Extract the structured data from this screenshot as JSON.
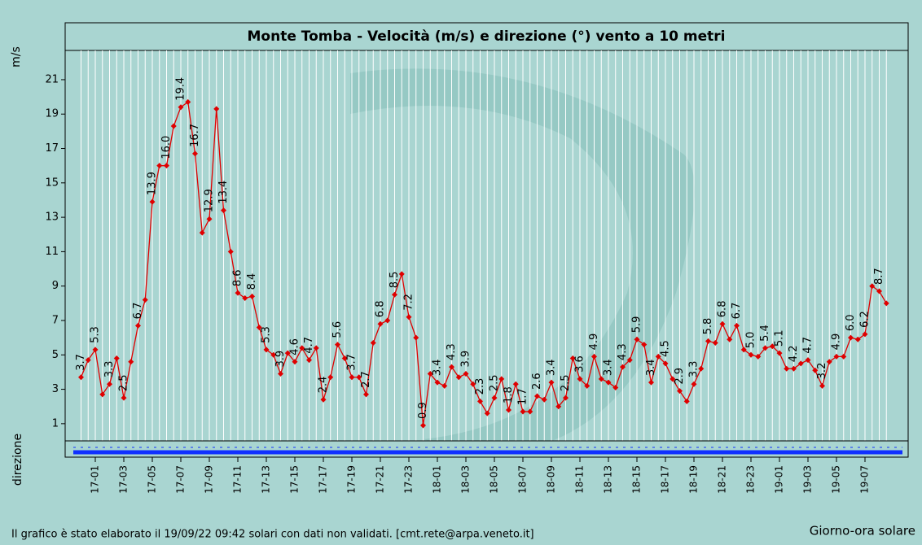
{
  "chart_data": {
    "type": "line",
    "title": "Monte Tomba - Velocità (m/s) e direzione (°) vento a 10 metri",
    "y_label": "m/s",
    "y2_label": "direzione",
    "x_label": "Giorno-ora solare",
    "footer": "Il grafico è stato elaborato il 19/09/22 09:42 solari con dati non validati. [cmt.rete@arpa.veneto.it]",
    "categories": [
      null,
      null,
      "17-01",
      null,
      null,
      null,
      "17-03",
      null,
      null,
      null,
      "17-05",
      null,
      null,
      null,
      "17-07",
      null,
      null,
      null,
      "17-09",
      null,
      null,
      null,
      "17-11",
      null,
      null,
      null,
      "17-13",
      null,
      null,
      null,
      "17-15",
      null,
      null,
      null,
      "17-17",
      null,
      null,
      null,
      "17-19",
      null,
      null,
      null,
      "17-21",
      null,
      null,
      null,
      "17-23",
      null,
      null,
      null,
      "18-01",
      null,
      null,
      null,
      "18-03",
      null,
      null,
      null,
      "18-05",
      null,
      null,
      null,
      "18-07",
      null,
      null,
      null,
      "18-09",
      null,
      null,
      null,
      "18-11",
      null,
      null,
      null,
      "18-13",
      null,
      null,
      null,
      "18-15",
      null,
      null,
      null,
      "18-17",
      null,
      null,
      null,
      "18-19",
      null,
      null,
      null,
      "18-21",
      null,
      null,
      null,
      "18-23",
      null,
      null,
      null,
      "19-01",
      null,
      null,
      null,
      "19-03",
      null,
      null,
      null,
      "19-05",
      null,
      null,
      null,
      "19-07",
      null,
      null,
      null
    ],
    "series": [
      {
        "name": "Velocità",
        "color": "#e00000",
        "values": [
          3.7,
          4.7,
          5.3,
          2.7,
          3.3,
          4.8,
          2.5,
          4.6,
          6.7,
          8.2,
          13.9,
          16.0,
          16.0,
          18.3,
          19.4,
          19.7,
          16.7,
          12.1,
          12.9,
          19.3,
          13.4,
          11.0,
          8.6,
          8.3,
          8.4,
          6.6,
          5.3,
          5.0,
          3.9,
          5.1,
          4.6,
          5.4,
          4.7,
          5.4,
          2.4,
          3.7,
          5.6,
          4.8,
          3.7,
          3.7,
          2.7,
          5.7,
          6.8,
          7.0,
          8.5,
          9.7,
          7.2,
          6.0,
          0.9,
          3.9,
          3.4,
          3.2,
          4.3,
          3.7,
          3.9,
          3.3,
          2.3,
          1.6,
          2.5,
          3.6,
          1.8,
          3.3,
          1.7,
          1.7,
          2.6,
          2.4,
          3.4,
          2.0,
          2.5,
          4.8,
          3.6,
          3.2,
          4.9,
          3.6,
          3.4,
          3.1,
          4.3,
          4.7,
          5.9,
          5.6,
          3.4,
          4.9,
          4.5,
          3.6,
          2.9,
          2.3,
          3.3,
          4.2,
          5.8,
          5.7,
          6.8,
          5.9,
          6.7,
          5.3,
          5.0,
          4.9,
          5.4,
          5.5,
          5.1,
          4.2,
          4.2,
          4.5,
          4.7,
          4.1,
          3.2,
          4.6,
          4.9,
          4.9,
          6.0,
          5.9,
          6.2,
          9.0,
          8.7,
          8.0
        ],
        "value_labels": [
          "3.7",
          null,
          "5.3",
          null,
          "3.3",
          null,
          "2.5",
          null,
          "6.7",
          null,
          "13.9",
          null,
          "16.0",
          null,
          "19.4",
          null,
          "16.7",
          null,
          "12.9",
          null,
          "13.4",
          null,
          "8.6",
          null,
          "8.4",
          null,
          "5.3",
          null,
          "3.9",
          null,
          "4.6",
          null,
          "4.7",
          null,
          "2.4",
          null,
          "5.6",
          null,
          "3.7",
          null,
          "2.7",
          null,
          "6.8",
          null,
          "8.5",
          null,
          "7.2",
          null,
          "0.9",
          null,
          "3.4",
          null,
          "4.3",
          null,
          "3.9",
          null,
          "2.3",
          null,
          "2.5",
          null,
          "1.8",
          null,
          "1.7",
          null,
          "2.6",
          null,
          "3.4",
          null,
          "2.5",
          null,
          "3.6",
          null,
          "4.9",
          null,
          "3.4",
          null,
          "4.3",
          null,
          "5.9",
          null,
          "3.4",
          null,
          "4.5",
          null,
          "2.9",
          null,
          "3.3",
          null,
          "5.8",
          null,
          "6.8",
          null,
          "6.7",
          null,
          "5.0",
          null,
          "5.4",
          null,
          "5.1",
          null,
          "4.2",
          null,
          "4.7",
          null,
          "3.2",
          null,
          "4.9",
          null,
          "6.0",
          null,
          "6.2",
          null,
          "8.7",
          null
        ]
      }
    ],
    "label_color": "#1c2a9c",
    "ylim": [
      0,
      22.7
    ],
    "yticks": [
      1,
      3,
      5,
      7,
      9,
      11,
      13,
      15,
      17,
      19,
      21
    ]
  }
}
